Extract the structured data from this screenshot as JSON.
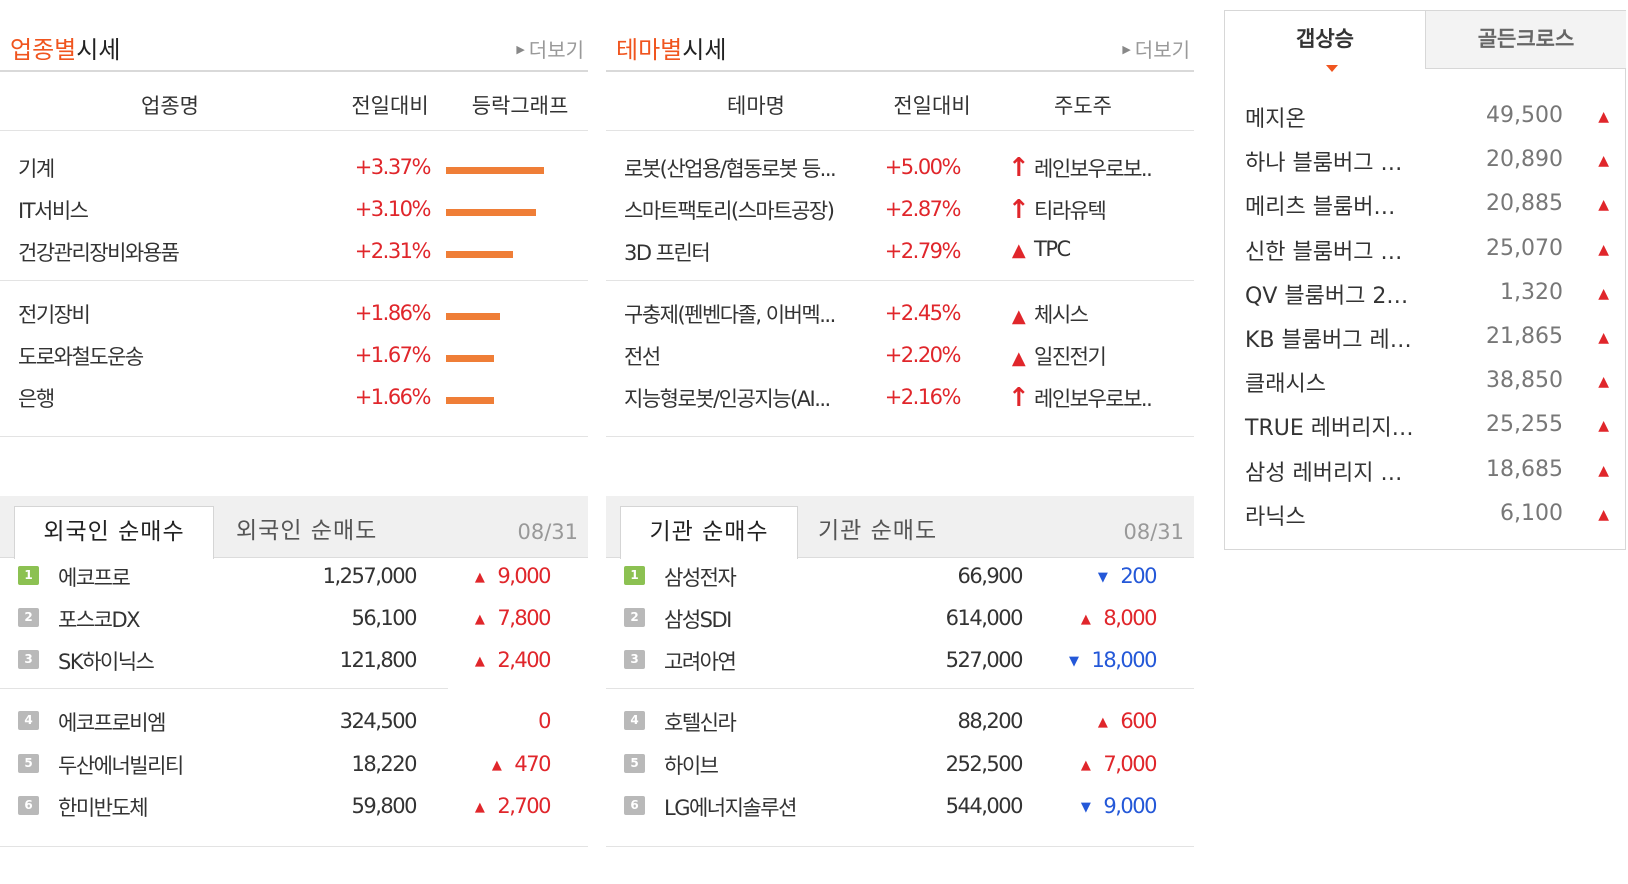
{
  "sector": {
    "title_accent": "업종별",
    "title_rest": "시세",
    "more": "더보기",
    "headers": [
      "업종명",
      "전일대비",
      "등락그래프"
    ],
    "rows": [
      {
        "name": "기계",
        "change": "+3.37%",
        "value": 3.37
      },
      {
        "name": "IT서비스",
        "change": "+3.10%",
        "value": 3.1
      },
      {
        "name": "건강관리장비와용품",
        "change": "+2.31%",
        "value": 2.31
      },
      {
        "name": "전기장비",
        "change": "+1.86%",
        "value": 1.86
      },
      {
        "name": "도로와철도운송",
        "change": "+1.67%",
        "value": 1.67
      },
      {
        "name": "은행",
        "change": "+1.66%",
        "value": 1.66
      }
    ]
  },
  "theme": {
    "title_accent": "테마별",
    "title_rest": "시세",
    "more": "더보기",
    "headers": [
      "테마명",
      "전일대비",
      "주도주"
    ],
    "rows": [
      {
        "name": "로봇(산업용/협동로봇 등...",
        "change": "+5.00%",
        "icon": "upper-limit-arrow-icon",
        "leader": "레인보우로보.."
      },
      {
        "name": "스마트팩토리(스마트공장)",
        "change": "+2.87%",
        "icon": "upper-limit-arrow-icon",
        "leader": "티라유텍"
      },
      {
        "name": "3D 프린터",
        "change": "+2.79%",
        "icon": "up-triangle-icon",
        "leader": "TPC"
      },
      {
        "name": "구충제(펜벤다졸, 이버멕...",
        "change": "+2.45%",
        "icon": "up-triangle-icon",
        "leader": "체시스"
      },
      {
        "name": "전선",
        "change": "+2.20%",
        "icon": "up-triangle-icon",
        "leader": "일진전기"
      },
      {
        "name": "지능형로봇/인공지능(AI...",
        "change": "+2.16%",
        "icon": "upper-limit-arrow-icon",
        "leader": "레인보우로보.."
      }
    ]
  },
  "foreign": {
    "tab_active": "외국인 순매수",
    "tab_inactive": "외국인 순매도",
    "date": "08/31",
    "rows": [
      {
        "rank": "1",
        "name": "에코프로",
        "price": "1,257,000",
        "change": "9,000",
        "dir": "up"
      },
      {
        "rank": "2",
        "name": "포스코DX",
        "price": "56,100",
        "change": "7,800",
        "dir": "up"
      },
      {
        "rank": "3",
        "name": "SK하이닉스",
        "price": "121,800",
        "change": "2,400",
        "dir": "up"
      },
      {
        "rank": "4",
        "name": "에코프로비엠",
        "price": "324,500",
        "change": "0",
        "dir": "flat"
      },
      {
        "rank": "5",
        "name": "두산에너빌리티",
        "price": "18,220",
        "change": "470",
        "dir": "up"
      },
      {
        "rank": "6",
        "name": "한미반도체",
        "price": "59,800",
        "change": "2,700",
        "dir": "up"
      }
    ]
  },
  "institution": {
    "tab_active": "기관 순매수",
    "tab_inactive": "기관 순매도",
    "date": "08/31",
    "rows": [
      {
        "rank": "1",
        "name": "삼성전자",
        "price": "66,900",
        "change": "200",
        "dir": "down"
      },
      {
        "rank": "2",
        "name": "삼성SDI",
        "price": "614,000",
        "change": "8,000",
        "dir": "up"
      },
      {
        "rank": "3",
        "name": "고려아연",
        "price": "527,000",
        "change": "18,000",
        "dir": "down"
      },
      {
        "rank": "4",
        "name": "호텔신라",
        "price": "88,200",
        "change": "600",
        "dir": "up"
      },
      {
        "rank": "5",
        "name": "하이브",
        "price": "252,500",
        "change": "7,000",
        "dir": "up"
      },
      {
        "rank": "6",
        "name": "LG에너지솔루션",
        "price": "544,000",
        "change": "9,000",
        "dir": "down"
      }
    ]
  },
  "gap": {
    "tab_active": "갭상승",
    "tab_inactive": "골든크로스",
    "rows": [
      {
        "name": "메지온",
        "price": "49,500"
      },
      {
        "name": "하나 블룸버그 …",
        "price": "20,890"
      },
      {
        "name": "메리츠 블룸버…",
        "price": "20,885"
      },
      {
        "name": "신한 블룸버그 …",
        "price": "25,070"
      },
      {
        "name": "QV 블룸버그 2…",
        "price": "1,320"
      },
      {
        "name": "KB 블룸버그 레…",
        "price": "21,865"
      },
      {
        "name": "클래시스",
        "price": "38,850"
      },
      {
        "name": "TRUE 레버리지…",
        "price": "25,255"
      },
      {
        "name": "삼성 레버리지 …",
        "price": "18,685"
      },
      {
        "name": "라닉스",
        "price": "6,100"
      }
    ]
  },
  "colors": {
    "accent": "#f0551f",
    "up": "#e0262b",
    "down": "#2458d8",
    "bar": "#ef7e37",
    "rank_first": "#8cc152",
    "rank": "#b9b9b9"
  }
}
